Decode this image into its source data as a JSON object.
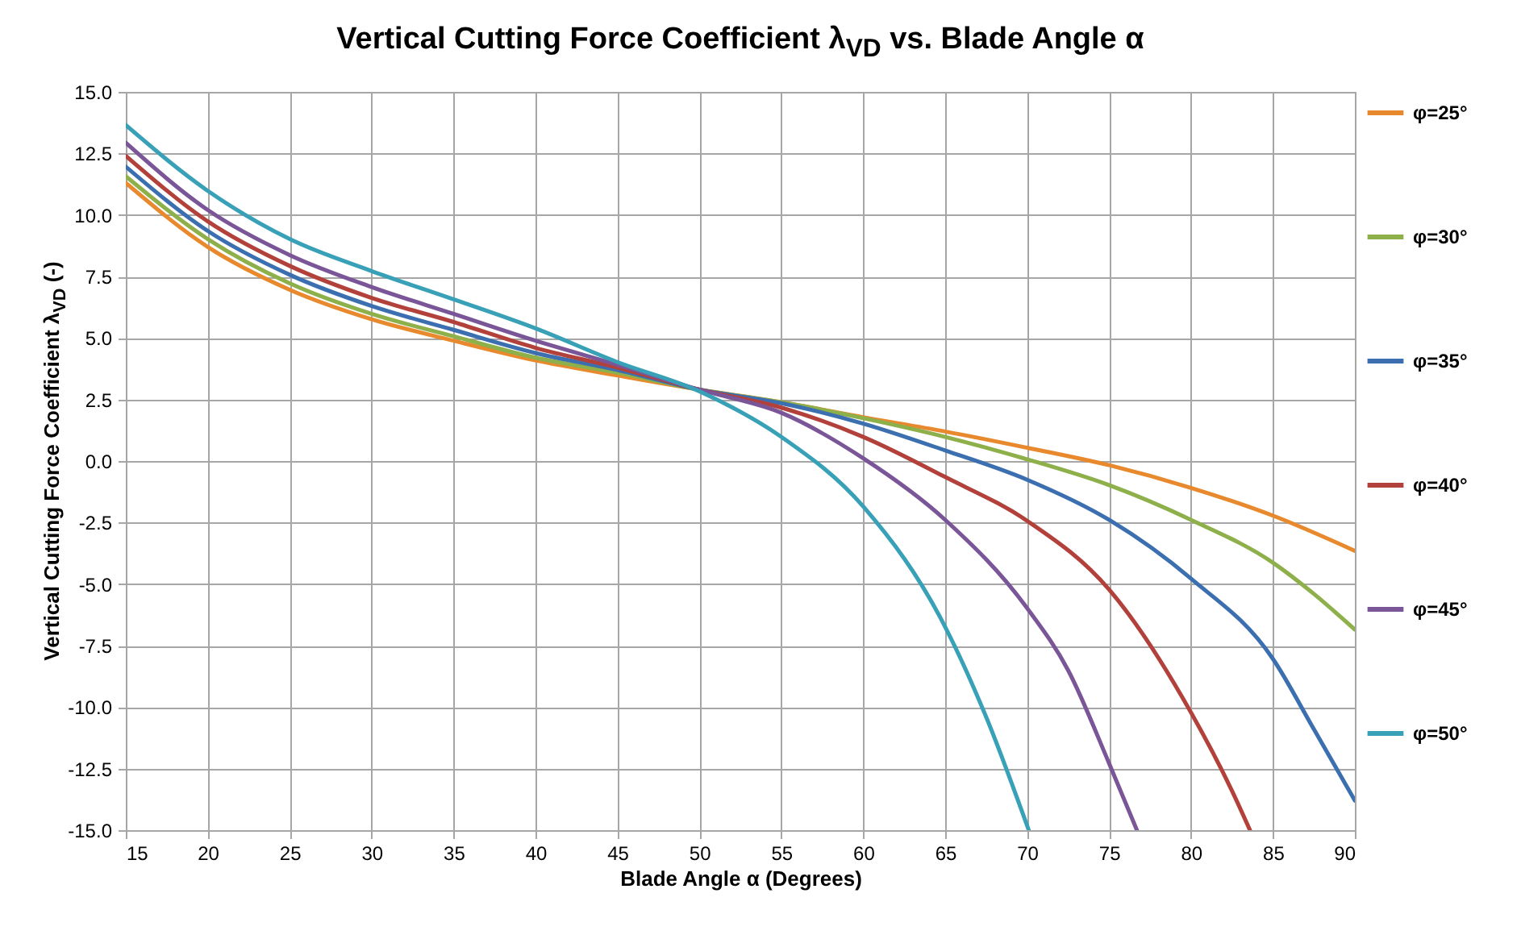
{
  "chart_data": {
    "type": "line",
    "title": "Vertical Cutting Force Coefficient λ$_{VD}$ vs. Blade Angle α",
    "xlabel": "Blade Angle α (Degrees)",
    "ylabel": "Vertical Cutting Force Coefficient λ$_{VD}$ (-)",
    "xlim": [
      15,
      90
    ],
    "xticks": [
      15,
      20,
      25,
      30,
      35,
      40,
      45,
      50,
      55,
      60,
      65,
      70,
      75,
      80,
      85,
      90
    ],
    "ylim": [
      -15,
      15
    ],
    "yticks": [
      {
        "value": -15,
        "label": "-15.0"
      },
      {
        "value": -12.5,
        "label": "-12.5"
      },
      {
        "value": -10,
        "label": "-10.0"
      },
      {
        "value": -7.5,
        "label": "-7.5"
      },
      {
        "value": -5,
        "label": "-5.0"
      },
      {
        "value": -2.5,
        "label": "-2.5"
      },
      {
        "value": 0,
        "label": "0.0"
      },
      {
        "value": 2.5,
        "label": "2.5"
      },
      {
        "value": 5,
        "label": "5.0"
      },
      {
        "value": 7.5,
        "label": "7.5"
      },
      {
        "value": 10,
        "label": "10.0"
      },
      {
        "value": 12.5,
        "label": "12.5"
      },
      {
        "value": 15,
        "label": "15.0"
      }
    ],
    "grid": true,
    "legend": "right",
    "series": [
      {
        "name": "φ=25°",
        "color": "#e8892d",
        "x": [
          15,
          20,
          25,
          30,
          35,
          40,
          45,
          50,
          55,
          60,
          65,
          70,
          75,
          80,
          85,
          90
        ],
        "values": [
          11.3,
          8.7,
          6.96,
          5.76,
          4.89,
          4.09,
          3.48,
          2.9,
          2.39,
          1.78,
          1.2,
          0.54,
          -0.17,
          -1.09,
          -2.22,
          -3.65
        ]
      },
      {
        "name": "φ=30°",
        "color": "#8db04a",
        "x": [
          15,
          20,
          25,
          30,
          35,
          40,
          45,
          50,
          55,
          60,
          65,
          70,
          75,
          80,
          85,
          87.5,
          90
        ],
        "values": [
          11.57,
          9.02,
          7.22,
          5.98,
          5.07,
          4.2,
          3.59,
          2.9,
          2.39,
          1.74,
          0.98,
          0.07,
          -0.98,
          -2.39,
          -4.13,
          -5.4,
          -6.85
        ]
      },
      {
        "name": "φ=35°",
        "color": "#3b6fb0",
        "x": [
          15,
          20,
          25,
          30,
          35,
          40,
          45,
          50,
          55,
          60,
          65,
          70,
          75,
          80,
          85,
          87.5,
          90
        ],
        "values": [
          11.96,
          9.35,
          7.57,
          6.3,
          5.33,
          4.39,
          3.7,
          2.9,
          2.35,
          1.52,
          0.43,
          -0.76,
          -2.39,
          -4.78,
          -8.04,
          -10.9,
          -13.8
        ]
      },
      {
        "name": "φ=40°",
        "color": "#b3413b",
        "x": [
          15,
          20,
          25,
          30,
          35,
          40,
          45,
          50,
          55,
          60,
          65,
          70,
          75,
          80,
          82.5,
          83.6
        ],
        "values": [
          12.4,
          9.74,
          7.93,
          6.63,
          5.65,
          4.6,
          3.8,
          2.9,
          2.17,
          0.98,
          -0.65,
          -2.43,
          -5.22,
          -10.22,
          -13.4,
          -15
        ]
      },
      {
        "name": "φ=45°",
        "color": "#7a5597",
        "x": [
          15,
          20,
          25,
          30,
          35,
          40,
          45,
          50,
          55,
          60,
          65,
          70,
          72.5,
          75,
          76.7
        ],
        "values": [
          12.93,
          10.2,
          8.37,
          7.07,
          5.98,
          4.89,
          3.91,
          2.9,
          1.96,
          0.11,
          -2.39,
          -5.98,
          -8.5,
          -12.28,
          -15
        ]
      },
      {
        "name": "φ=50°",
        "color": "#38a1b8",
        "x": [
          15,
          20,
          25,
          30,
          35,
          40,
          45,
          50,
          55,
          60,
          65,
          67.5,
          70.1
        ],
        "values": [
          13.65,
          10.98,
          9.02,
          7.72,
          6.57,
          5.39,
          4.02,
          2.83,
          0.98,
          -1.85,
          -6.74,
          -10.4,
          -15
        ]
      }
    ]
  }
}
